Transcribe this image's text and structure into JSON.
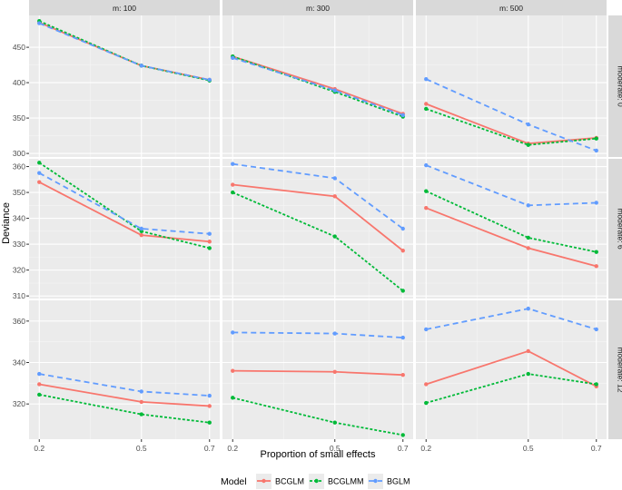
{
  "chart_data": {
    "type": "line",
    "xlabel": "Proportion of small effects",
    "ylabel": "Deviance",
    "x": [
      0.2,
      0.5,
      0.7
    ],
    "x_tick_labels": [
      "0.2",
      "0.5",
      "0.7"
    ],
    "facet_columns": [
      "m: 100",
      "m: 300",
      "m: 500"
    ],
    "facet_rows": [
      "moderate: 0",
      "moderate: 6",
      "moderate: 12"
    ],
    "legend": {
      "title": "Model",
      "entries": [
        "BCGLM",
        "BCGLMM",
        "BGLM"
      ],
      "position": "bottom"
    },
    "series_styles": [
      {
        "name": "BCGLM",
        "color": "#F8766D",
        "dash": "solid"
      },
      {
        "name": "BCGLMM",
        "color": "#00BA38",
        "dash": "dotted"
      },
      {
        "name": "BGLM",
        "color": "#619CFF",
        "dash": "dashed"
      }
    ],
    "rows": [
      {
        "label": "moderate: 0",
        "ylim": [
          295,
          495
        ],
        "yticks": [
          300,
          350,
          400,
          450
        ],
        "panels": [
          {
            "series": [
              {
                "name": "BCGLM",
                "values": [
                  485,
                  424,
                  404
                ]
              },
              {
                "name": "BCGLMM",
                "values": [
                  487,
                  424,
                  403
                ]
              },
              {
                "name": "BGLM",
                "values": [
                  484,
                  424,
                  404
                ]
              }
            ]
          },
          {
            "series": [
              {
                "name": "BCGLM",
                "values": [
                  437,
                  391,
                  356
                ]
              },
              {
                "name": "BCGLMM",
                "values": [
                  437,
                  387,
                  352
                ]
              },
              {
                "name": "BGLM",
                "values": [
                  435,
                  389,
                  354
                ]
              }
            ]
          },
          {
            "series": [
              {
                "name": "BCGLM",
                "values": [
                  370,
                  314,
                  322
                ]
              },
              {
                "name": "BCGLMM",
                "values": [
                  363,
                  312,
                  321
                ]
              },
              {
                "name": "BGLM",
                "values": [
                  405,
                  341,
                  304
                ]
              }
            ]
          }
        ]
      },
      {
        "label": "moderate: 6",
        "ylim": [
          309,
          363
        ],
        "yticks": [
          310,
          320,
          330,
          340,
          350,
          360
        ],
        "panels": [
          {
            "series": [
              {
                "name": "BCGLM",
                "values": [
                  354,
                  333.5,
                  331
                ]
              },
              {
                "name": "BCGLMM",
                "values": [
                  361.5,
                  335,
                  328.5
                ]
              },
              {
                "name": "BGLM",
                "values": [
                  357.5,
                  336,
                  334
                ]
              }
            ]
          },
          {
            "series": [
              {
                "name": "BCGLM",
                "values": [
                  353,
                  348.5,
                  327.5
                ]
              },
              {
                "name": "BCGLMM",
                "values": [
                  350,
                  333,
                  312
                ]
              },
              {
                "name": "BGLM",
                "values": [
                  361,
                  355.5,
                  336
                ]
              }
            ]
          },
          {
            "series": [
              {
                "name": "BCGLM",
                "values": [
                  344,
                  328.5,
                  321.5
                ]
              },
              {
                "name": "BCGLMM",
                "values": [
                  350.5,
                  332.5,
                  327
                ]
              },
              {
                "name": "BGLM",
                "values": [
                  360.5,
                  345,
                  346
                ]
              }
            ]
          }
        ]
      },
      {
        "label": "moderate: 12",
        "ylim": [
          303,
          370
        ],
        "yticks": [
          320,
          340,
          360
        ],
        "panels": [
          {
            "series": [
              {
                "name": "BCGLM",
                "values": [
                  329.5,
                  321,
                  319
                ]
              },
              {
                "name": "BCGLMM",
                "values": [
                  324.5,
                  315,
                  311
                ]
              },
              {
                "name": "BGLM",
                "values": [
                  334.5,
                  326,
                  324
                ]
              }
            ]
          },
          {
            "series": [
              {
                "name": "BCGLM",
                "values": [
                  336,
                  335.5,
                  334
                ]
              },
              {
                "name": "BCGLMM",
                "values": [
                  323,
                  311,
                  305
                ]
              },
              {
                "name": "BGLM",
                "values": [
                  354.5,
                  354,
                  352
                ]
              }
            ]
          },
          {
            "series": [
              {
                "name": "BCGLM",
                "values": [
                  329.5,
                  345.5,
                  328.5
                ]
              },
              {
                "name": "BCGLMM",
                "values": [
                  320.5,
                  334.5,
                  329.5
                ]
              },
              {
                "name": "BGLM",
                "values": [
                  356,
                  366,
                  356
                ]
              }
            ]
          }
        ]
      }
    ]
  }
}
